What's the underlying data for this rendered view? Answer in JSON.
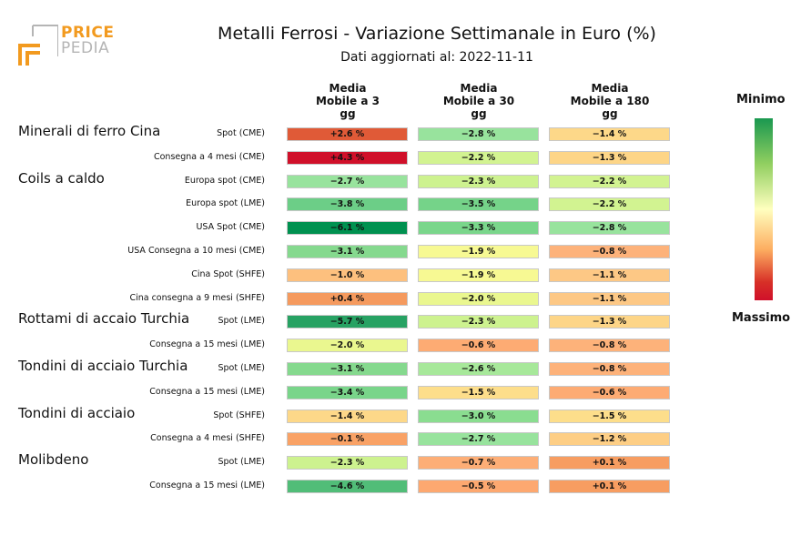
{
  "logo": {
    "line1": "PRICE",
    "line2": "PEDIA"
  },
  "colors": {
    "logo_orange": "#f29a1f",
    "logo_gray": "#b5b5b5"
  },
  "chart_data": {
    "type": "table",
    "title": "Metalli Ferrosi - Variazione Settimanale in Euro (%)",
    "subtitle": "Dati aggiornati al: 2022-11-11",
    "columns": [
      "Media\nMobile a 3\ngg",
      "Media\nMobile a 30\ngg",
      "Media\nMobile a 180\ngg"
    ],
    "legend": {
      "min_label": "Minimo",
      "max_label": "Massimo",
      "placement": "right"
    },
    "groups": [
      {
        "name": "Minerali di ferro Cina",
        "rows": [
          {
            "label": "Spot (CME)",
            "values": [
              "+2.6 %",
              "−2.8 %",
              "−1.4 %"
            ],
            "colors": [
              "#e05a37",
              "#98e39d",
              "#fdd889"
            ]
          },
          {
            "label": "Consegna a 4 mesi (CME)",
            "values": [
              "+4.3 %",
              "−2.2 %",
              "−1.3 %"
            ],
            "colors": [
              "#d0102a",
              "#d2f391",
              "#fdd587"
            ]
          }
        ]
      },
      {
        "name": "Coils a caldo",
        "rows": [
          {
            "label": "Europa spot (CME)",
            "values": [
              "−2.7 %",
              "−2.3 %",
              "−2.2 %"
            ],
            "colors": [
              "#98e39d",
              "#cdf28f",
              "#d2f391"
            ]
          },
          {
            "label": "Europa spot (LME)",
            "values": [
              "−3.8 %",
              "−3.5 %",
              "−2.2 %"
            ],
            "colors": [
              "#6cce87",
              "#75d389",
              "#d2f391"
            ]
          },
          {
            "label": "USA Spot (CME)",
            "values": [
              "−6.1 %",
              "−3.3 %",
              "−2.8 %"
            ],
            "colors": [
              "#009150",
              "#7ad68b",
              "#98e39d"
            ]
          },
          {
            "label": "USA Consegna a 10 mesi (CME)",
            "values": [
              "−3.1 %",
              "−1.9 %",
              "−0.8 %"
            ],
            "colors": [
              "#85d98e",
              "#f7f993",
              "#fdb27a"
            ]
          },
          {
            "label": "Cina Spot (SHFE)",
            "values": [
              "−1.0 %",
              "−1.9 %",
              "−1.1 %"
            ],
            "colors": [
              "#fdc07e",
              "#f7f993",
              "#fdc885"
            ]
          },
          {
            "label": "Cina consegna a 9 mesi (SHFE)",
            "values": [
              "+0.4 %",
              "−2.0 %",
              "−1.1 %"
            ],
            "colors": [
              "#f59a5e",
              "#eaf78f",
              "#fdc885"
            ]
          }
        ]
      },
      {
        "name": "Rottami di accaio Turchia",
        "rows": [
          {
            "label": "Spot (LME)",
            "values": [
              "−5.7 %",
              "−2.3 %",
              "−1.3 %"
            ],
            "colors": [
              "#27a263",
              "#cdf28f",
              "#fdd587"
            ]
          },
          {
            "label": "Consegna a 15 mesi (LME)",
            "values": [
              "−2.0 %",
              "−0.6 %",
              "−0.8 %"
            ],
            "colors": [
              "#eaf78f",
              "#fdab73",
              "#fdb27a"
            ]
          }
        ]
      },
      {
        "name": "Tondini di acciaio Turchia",
        "rows": [
          {
            "label": "Spot (LME)",
            "values": [
              "−3.1 %",
              "−2.6 %",
              "−0.8 %"
            ],
            "colors": [
              "#85d98e",
              "#a7e89a",
              "#fdb27a"
            ]
          },
          {
            "label": "Consegna a 15 mesi (LME)",
            "values": [
              "−3.4 %",
              "−1.5 %",
              "−0.6 %"
            ],
            "colors": [
              "#79d58a",
              "#fdde8b",
              "#fdab73"
            ]
          }
        ]
      },
      {
        "name": "Tondini di acciaio",
        "rows": [
          {
            "label": "Spot (SHFE)",
            "values": [
              "−1.4 %",
              "−3.0 %",
              "−1.5 %"
            ],
            "colors": [
              "#fdd889",
              "#8add90",
              "#fdde8b"
            ]
          },
          {
            "label": "Consegna a 4 mesi (SHFE)",
            "values": [
              "−0.1 %",
              "−2.7 %",
              "−1.2 %"
            ],
            "colors": [
              "#f9a266",
              "#98e39d",
              "#fdce85"
            ]
          }
        ]
      },
      {
        "name": "Molibdeno",
        "rows": [
          {
            "label": "Spot (LME)",
            "values": [
              "−2.3 %",
              "−0.7 %",
              "+0.1 %"
            ],
            "colors": [
              "#cdf28f",
              "#fdae76",
              "#f79d61"
            ]
          },
          {
            "label": "Consegna a 15 mesi (LME)",
            "values": [
              "−4.6 %",
              "−0.5 %",
              "+0.1 %"
            ],
            "colors": [
              "#51bd78",
              "#fda870",
              "#f79d61"
            ]
          }
        ]
      }
    ]
  }
}
